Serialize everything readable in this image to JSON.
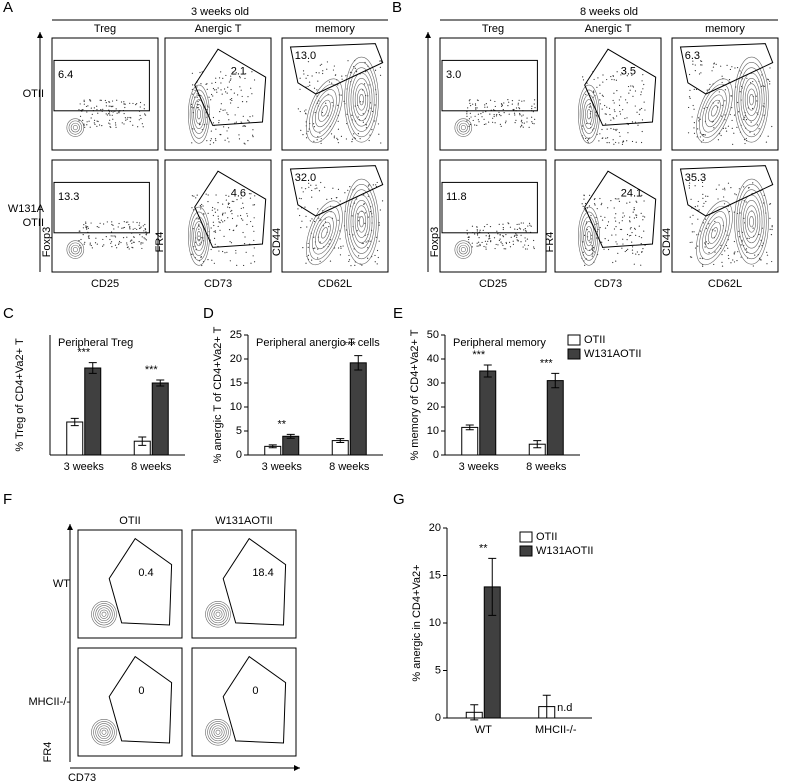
{
  "panel_letters": [
    "A",
    "B",
    "C",
    "D",
    "E",
    "F",
    "G"
  ],
  "flow_A": {
    "title": "3 weeks old",
    "columns": [
      "Treg",
      "Anergic T",
      "memory"
    ],
    "rows": [
      [
        "OTII"
      ],
      [
        "W131A",
        "OTII"
      ]
    ],
    "gates": [
      [
        "6.4",
        "2.1",
        "13.0"
      ],
      [
        "13.3",
        "4.6",
        "32.0"
      ]
    ],
    "x_labels": [
      "CD25",
      "CD73",
      "CD62L"
    ],
    "y_labels": [
      "Foxp3",
      "FR4",
      "CD44"
    ]
  },
  "flow_B": {
    "title": "8 weeks old",
    "columns": [
      "Treg",
      "Anergic T",
      "memory"
    ],
    "gates": [
      [
        "3.0",
        "3.5",
        "6.3"
      ],
      [
        "11.8",
        "24.1",
        "35.3"
      ]
    ],
    "x_labels": [
      "CD25",
      "CD73",
      "CD62L"
    ],
    "y_labels": [
      "Foxp3",
      "FR4",
      "CD44"
    ]
  },
  "flow_F": {
    "columns": [
      "OTII",
      "W131AOTII"
    ],
    "rows": [
      [
        "WT"
      ],
      [
        "MHCII-/-"
      ]
    ],
    "gates": [
      [
        "0.4",
        "18.4"
      ],
      [
        "0",
        "0"
      ]
    ],
    "x_label": "CD73",
    "y_label": "FR4"
  },
  "chart_data": [
    {
      "type": "bar",
      "title": "Peripheral Treg",
      "y_label": "% Treg of CD4+Va2+ T",
      "categories": [
        "3 weeks",
        "8 weeks"
      ],
      "ylim": [
        0,
        20
      ],
      "significance": [
        "***",
        "***"
      ],
      "series": [
        {
          "name": "OTII",
          "color": "#ffffff",
          "values": [
            5.5,
            2.3
          ],
          "errors": [
            0.6,
            0.7
          ]
        },
        {
          "name": "W131AOTII",
          "color": "#404040",
          "values": [
            14.5,
            12
          ],
          "errors": [
            0.9,
            0.5
          ]
        }
      ]
    },
    {
      "type": "bar",
      "title": "Peripheral anergic T cells",
      "y_label": "% anergic T of CD4+Va2+ T",
      "categories": [
        "3 weeks",
        "8 weeks"
      ],
      "ylim": [
        0,
        25
      ],
      "yticks": [
        0,
        5,
        10,
        15,
        20,
        25
      ],
      "significance": [
        "**",
        "***"
      ],
      "series": [
        {
          "name": "OTII",
          "color": "#ffffff",
          "values": [
            1.8,
            3.0
          ],
          "errors": [
            0.3,
            0.4
          ]
        },
        {
          "name": "W131AOTII",
          "color": "#404040",
          "values": [
            3.9,
            19.2
          ],
          "errors": [
            0.4,
            1.5
          ]
        }
      ]
    },
    {
      "type": "bar",
      "title": "Peripheral memory",
      "y_label": "% memory of CD4+Va2+ T",
      "categories": [
        "3 weeks",
        "8 weeks"
      ],
      "ylim": [
        0,
        50
      ],
      "yticks": [
        0,
        10,
        20,
        30,
        40,
        50
      ],
      "significance": [
        "***",
        "***"
      ],
      "legend": true,
      "series": [
        {
          "name": "OTII",
          "color": "#ffffff",
          "values": [
            11.5,
            4.5
          ],
          "errors": [
            1.0,
            1.5
          ]
        },
        {
          "name": "W131AOTII",
          "color": "#404040",
          "values": [
            35,
            31
          ],
          "errors": [
            2.5,
            3
          ]
        }
      ]
    },
    {
      "type": "bar",
      "y_label": "% anergic in CD4+Va2+",
      "categories": [
        "WT",
        "MHCII-/-"
      ],
      "ylim": [
        0,
        20
      ],
      "yticks": [
        0,
        5,
        10,
        15,
        20
      ],
      "significance": [
        "**",
        null
      ],
      "legend": true,
      "series": [
        {
          "name": "OTII",
          "color": "#ffffff",
          "values": [
            0.6,
            1.2
          ],
          "errors": [
            0.8,
            1.2
          ]
        },
        {
          "name": "W131AOTII",
          "color": "#404040",
          "values": [
            13.8,
            0
          ],
          "errors": [
            3,
            0
          ],
          "value_labels": [
            null,
            "n.d"
          ]
        }
      ]
    }
  ]
}
